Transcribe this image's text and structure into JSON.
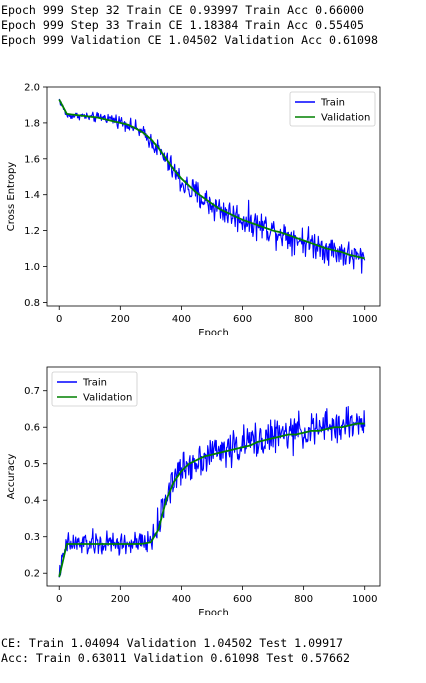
{
  "log_top": [
    "Epoch 999 Step 32 Train CE 0.93997 Train Acc 0.66000",
    "Epoch 999 Step 33 Train CE 1.18384 Train Acc 0.55405",
    "Epoch 999 Validation CE 1.04502 Validation Acc 0.61098"
  ],
  "log_bottom": [
    "CE: Train 1.04094 Validation 1.04502 Test 1.09917",
    "Acc: Train 0.63011 Validation 0.61098 Test 0.57662"
  ],
  "colors": {
    "train": "#0000ff",
    "validation": "#008000",
    "axis": "#000000",
    "background": "#ffffff"
  },
  "chart_data": [
    {
      "type": "line",
      "xlabel": "Epoch",
      "ylabel": "Cross Entropy",
      "xlim": [
        -40,
        1050
      ],
      "ylim": [
        0.78,
        2.0
      ],
      "xticks": [
        0,
        200,
        400,
        600,
        800,
        1000
      ],
      "yticks": [
        0.8,
        1.0,
        1.2,
        1.4,
        1.6,
        1.8,
        2.0
      ],
      "xtick_labels": [
        "0",
        "200",
        "400",
        "600",
        "800",
        "1000"
      ],
      "ytick_labels": [
        "0.8",
        "1.0",
        "1.2",
        "1.4",
        "1.6",
        "1.8",
        "2.0"
      ],
      "grid": false,
      "legend": "top-right",
      "series": [
        {
          "name": "Train",
          "color": "#0000ff",
          "x": [
            0,
            25,
            50,
            75,
            100,
            125,
            150,
            175,
            200,
            225,
            250,
            275,
            300,
            325,
            350,
            375,
            400,
            425,
            450,
            475,
            500,
            525,
            550,
            575,
            600,
            625,
            650,
            675,
            700,
            725,
            750,
            775,
            800,
            825,
            850,
            875,
            900,
            925,
            950,
            975,
            1000
          ],
          "y": [
            1.93,
            1.84,
            1.84,
            1.84,
            1.83,
            1.83,
            1.83,
            1.82,
            1.81,
            1.79,
            1.77,
            1.74,
            1.7,
            1.65,
            1.59,
            1.53,
            1.47,
            1.43,
            1.4,
            1.37,
            1.34,
            1.32,
            1.3,
            1.28,
            1.26,
            1.25,
            1.23,
            1.22,
            1.2,
            1.19,
            1.17,
            1.16,
            1.14,
            1.13,
            1.12,
            1.1,
            1.09,
            1.08,
            1.06,
            1.05,
            1.04
          ],
          "noise_amplitude": [
            0.03,
            0.03,
            0.03,
            0.03,
            0.04,
            0.04,
            0.04,
            0.05,
            0.05,
            0.05,
            0.06,
            0.06,
            0.07,
            0.08,
            0.09,
            0.1,
            0.11,
            0.12,
            0.12,
            0.12,
            0.12,
            0.12,
            0.12,
            0.12,
            0.12,
            0.12,
            0.12,
            0.12,
            0.12,
            0.12,
            0.12,
            0.12,
            0.12,
            0.12,
            0.12,
            0.12,
            0.12,
            0.12,
            0.12,
            0.12,
            0.12
          ]
        },
        {
          "name": "Validation",
          "color": "#008000",
          "x": [
            0,
            25,
            50,
            75,
            100,
            125,
            150,
            175,
            200,
            225,
            250,
            275,
            300,
            325,
            350,
            375,
            400,
            425,
            450,
            475,
            500,
            525,
            550,
            575,
            600,
            625,
            650,
            675,
            700,
            725,
            750,
            775,
            800,
            825,
            850,
            875,
            900,
            925,
            950,
            975,
            1000
          ],
          "y": [
            1.93,
            1.85,
            1.845,
            1.84,
            1.835,
            1.83,
            1.82,
            1.81,
            1.8,
            1.79,
            1.77,
            1.745,
            1.71,
            1.66,
            1.6,
            1.54,
            1.49,
            1.45,
            1.41,
            1.38,
            1.35,
            1.32,
            1.3,
            1.28,
            1.26,
            1.245,
            1.23,
            1.215,
            1.2,
            1.19,
            1.175,
            1.16,
            1.145,
            1.13,
            1.115,
            1.1,
            1.09,
            1.08,
            1.065,
            1.055,
            1.045
          ]
        }
      ]
    },
    {
      "type": "line",
      "xlabel": "Epoch",
      "ylabel": "Accuracy",
      "xlim": [
        -40,
        1050
      ],
      "ylim": [
        0.165,
        0.765
      ],
      "xticks": [
        0,
        200,
        400,
        600,
        800,
        1000
      ],
      "yticks": [
        0.2,
        0.3,
        0.4,
        0.5,
        0.6,
        0.7
      ],
      "xtick_labels": [
        "0",
        "200",
        "400",
        "600",
        "800",
        "1000"
      ],
      "ytick_labels": [
        "0.2",
        "0.3",
        "0.4",
        "0.5",
        "0.6",
        "0.7"
      ],
      "grid": false,
      "legend": "top-left",
      "series": [
        {
          "name": "Train",
          "color": "#0000ff",
          "x": [
            0,
            25,
            50,
            75,
            100,
            125,
            150,
            175,
            200,
            225,
            250,
            275,
            300,
            325,
            350,
            375,
            400,
            425,
            450,
            475,
            500,
            525,
            550,
            575,
            600,
            625,
            650,
            675,
            700,
            725,
            750,
            775,
            800,
            825,
            850,
            875,
            900,
            925,
            950,
            975,
            1000
          ],
          "y": [
            0.2,
            0.28,
            0.28,
            0.28,
            0.28,
            0.28,
            0.28,
            0.28,
            0.28,
            0.28,
            0.28,
            0.28,
            0.29,
            0.33,
            0.41,
            0.46,
            0.48,
            0.5,
            0.51,
            0.52,
            0.53,
            0.535,
            0.54,
            0.545,
            0.55,
            0.56,
            0.565,
            0.57,
            0.575,
            0.58,
            0.58,
            0.585,
            0.59,
            0.59,
            0.595,
            0.6,
            0.6,
            0.605,
            0.61,
            0.61,
            0.62
          ],
          "noise_amplitude": [
            0.03,
            0.05,
            0.05,
            0.05,
            0.05,
            0.05,
            0.05,
            0.05,
            0.05,
            0.05,
            0.05,
            0.05,
            0.05,
            0.06,
            0.07,
            0.07,
            0.07,
            0.07,
            0.07,
            0.07,
            0.07,
            0.07,
            0.07,
            0.07,
            0.07,
            0.07,
            0.07,
            0.07,
            0.07,
            0.07,
            0.07,
            0.07,
            0.07,
            0.07,
            0.07,
            0.07,
            0.07,
            0.07,
            0.07,
            0.07,
            0.07
          ]
        },
        {
          "name": "Validation",
          "color": "#008000",
          "x": [
            0,
            25,
            50,
            75,
            100,
            125,
            150,
            175,
            200,
            225,
            250,
            275,
            300,
            325,
            350,
            375,
            400,
            425,
            450,
            475,
            500,
            525,
            550,
            575,
            600,
            625,
            650,
            675,
            700,
            725,
            750,
            775,
            800,
            825,
            850,
            875,
            900,
            925,
            950,
            975,
            1000
          ],
          "y": [
            0.19,
            0.28,
            0.28,
            0.28,
            0.28,
            0.28,
            0.28,
            0.28,
            0.28,
            0.28,
            0.28,
            0.281,
            0.285,
            0.32,
            0.4,
            0.45,
            0.48,
            0.5,
            0.51,
            0.52,
            0.525,
            0.53,
            0.535,
            0.54,
            0.545,
            0.55,
            0.56,
            0.565,
            0.57,
            0.575,
            0.58,
            0.58,
            0.585,
            0.59,
            0.59,
            0.595,
            0.6,
            0.6,
            0.605,
            0.61,
            0.61
          ]
        }
      ]
    }
  ]
}
